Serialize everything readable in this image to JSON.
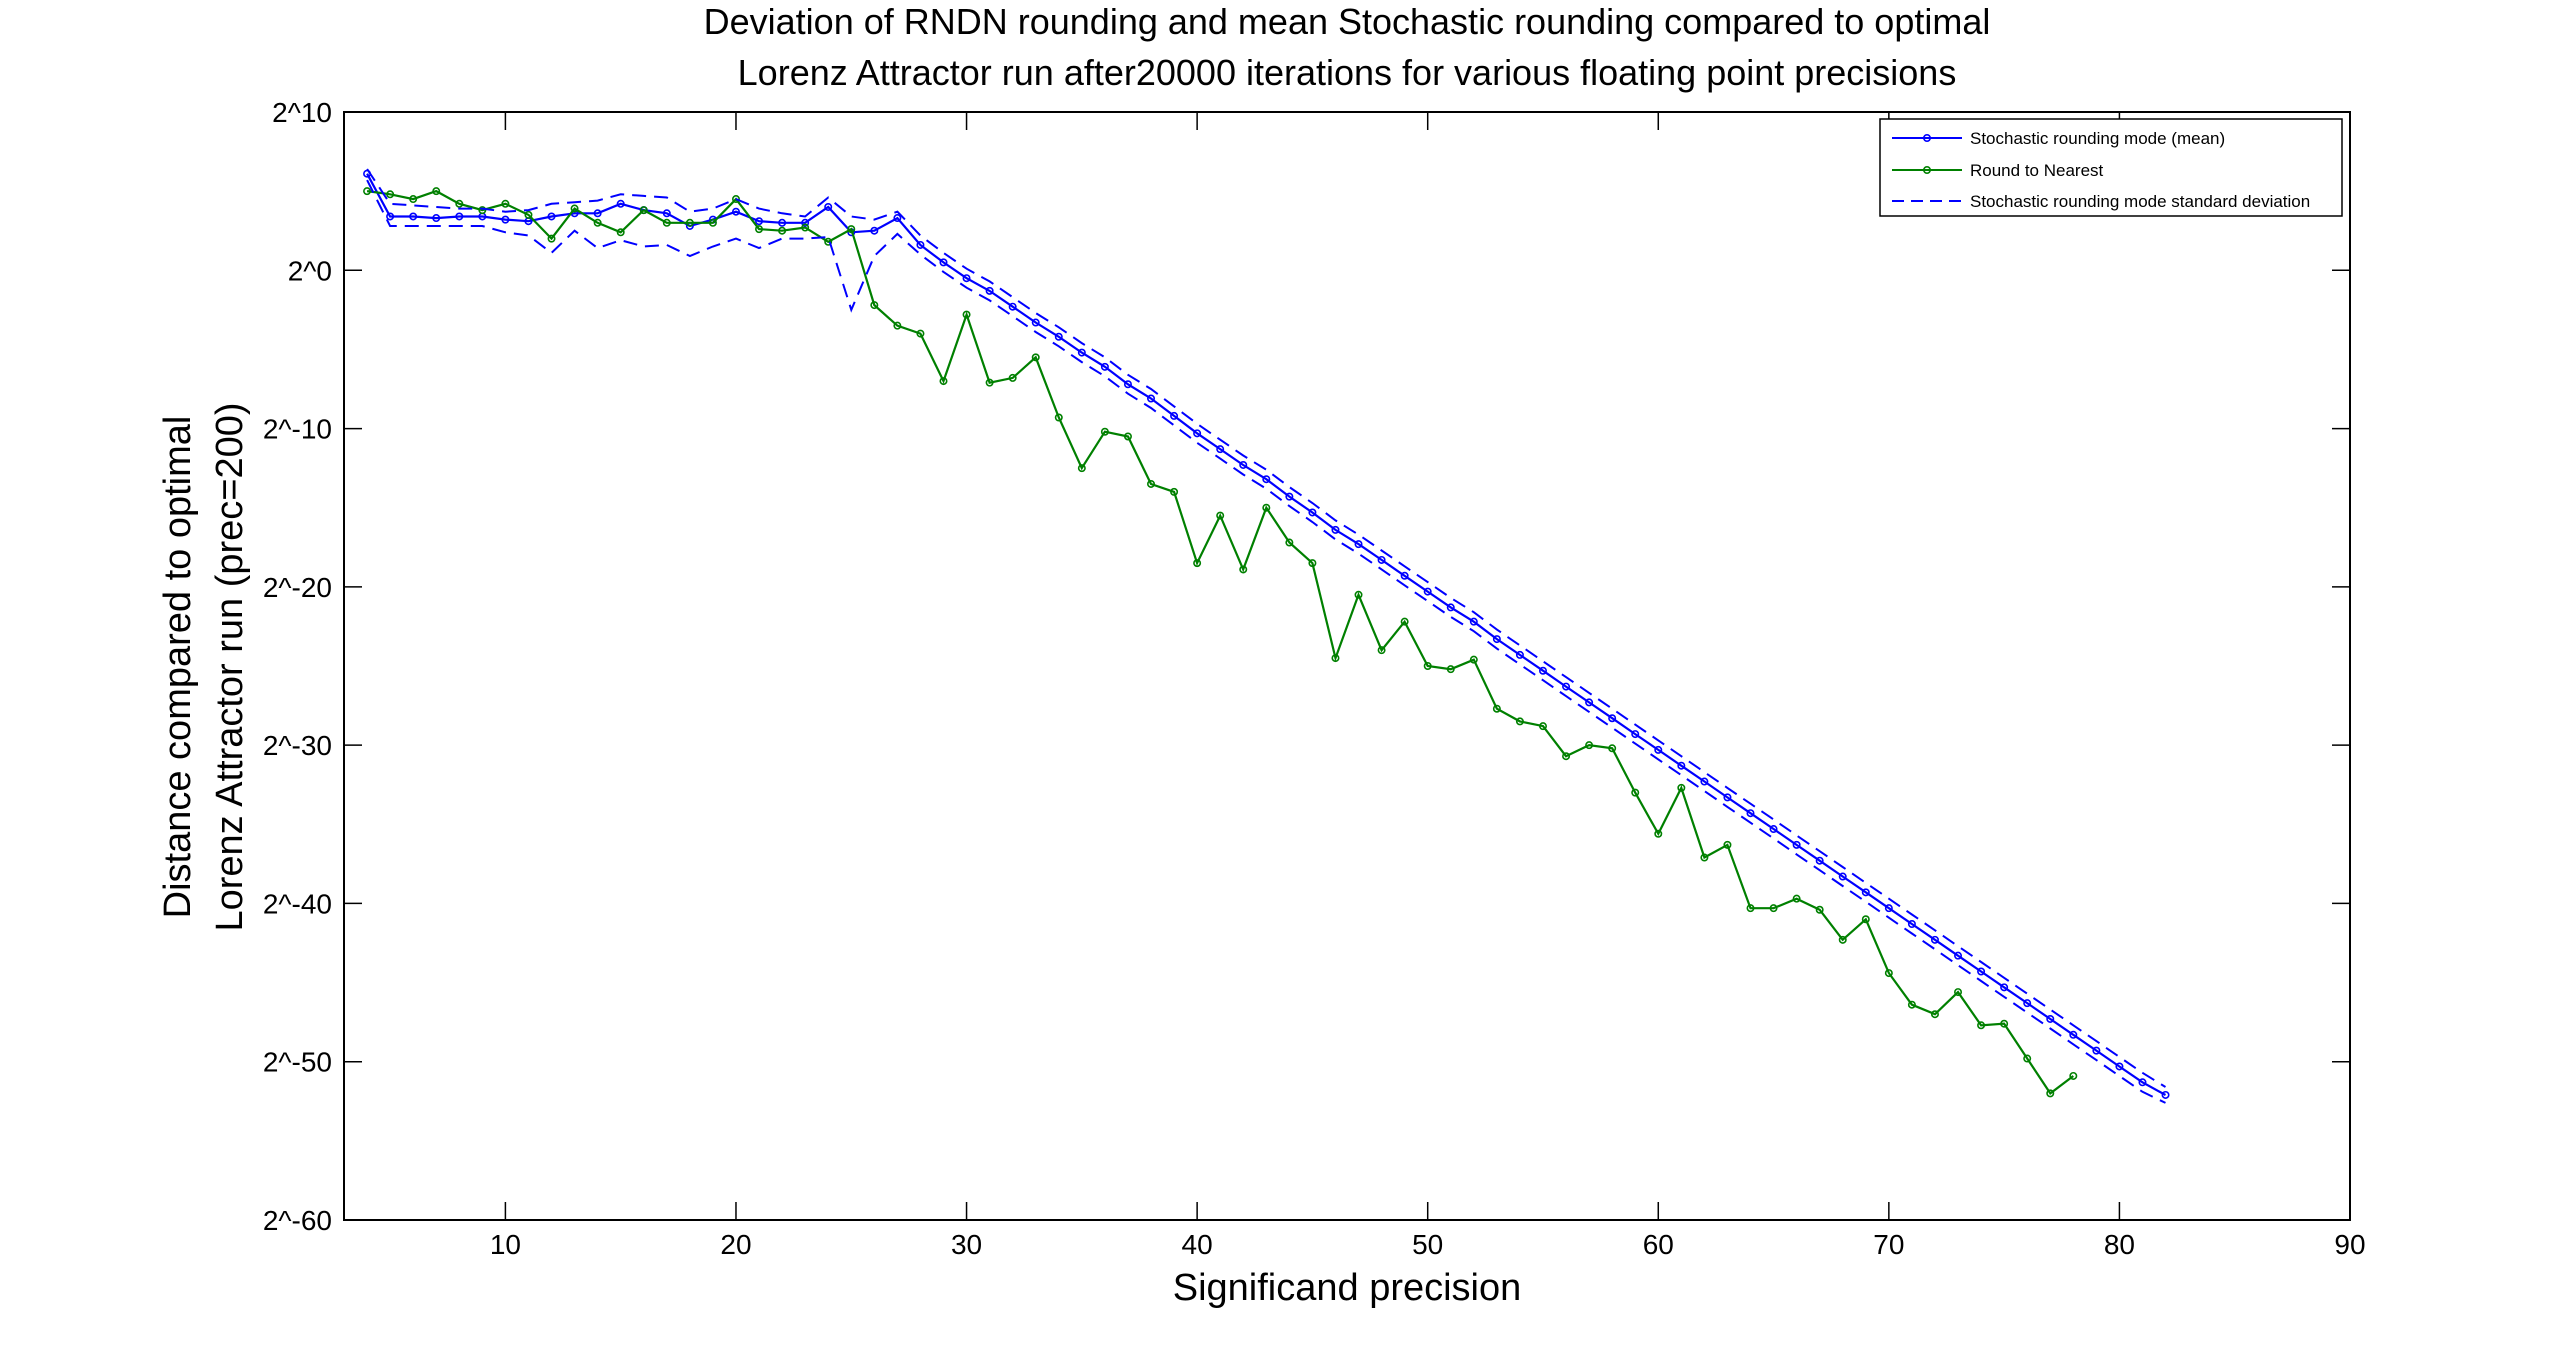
{
  "chart_data": {
    "type": "line",
    "title": [
      "Deviation of RNDN rounding and mean Stochastic rounding compared to optimal",
      "Lorenz Attractor run after20000 iterations for various floating point precisions"
    ],
    "xlabel": "Significand precision",
    "ylabel": [
      "Distance compared to optimal",
      "Lorenz Attractor run (prec=200)"
    ],
    "xlim": [
      3,
      90
    ],
    "ylim": [
      -60,
      10
    ],
    "y_scale": "log2",
    "x_ticks": [
      10,
      20,
      30,
      40,
      50,
      60,
      70,
      80,
      90
    ],
    "y_ticks": [
      10,
      0,
      -10,
      -20,
      -30,
      -40,
      -50,
      -60
    ],
    "y_tick_labels": [
      "2^10",
      "2^0",
      "2^-10",
      "2^-20",
      "2^-30",
      "2^-40",
      "2^-50",
      "2^-60"
    ],
    "grid": false,
    "legend_position": "top-right",
    "series": [
      {
        "name": "Stochastic rounding mode (mean)",
        "color": "#0000ff",
        "style": "solid-dots",
        "x": [
          4,
          5,
          6,
          7,
          8,
          9,
          10,
          11,
          12,
          13,
          14,
          15,
          16,
          17,
          18,
          19,
          20,
          21,
          22,
          23,
          24,
          25,
          26,
          27,
          28,
          29,
          30,
          31,
          32,
          33,
          34,
          35,
          36,
          37,
          38,
          39,
          40,
          41,
          42,
          43,
          44,
          45,
          46,
          47,
          48,
          49,
          50,
          51,
          52,
          53,
          54,
          55,
          56,
          57,
          58,
          59,
          60,
          61,
          62,
          63,
          64,
          65,
          66,
          67,
          68,
          69,
          70,
          71,
          72,
          73,
          74,
          75,
          76,
          77,
          78,
          79,
          80,
          81,
          82
        ],
        "y": [
          6.1,
          3.4,
          3.4,
          3.3,
          3.4,
          3.4,
          3.2,
          3.1,
          3.4,
          3.6,
          3.6,
          4.2,
          3.8,
          3.6,
          2.8,
          3.2,
          3.7,
          3.1,
          3.0,
          3.0,
          4.0,
          2.4,
          2.5,
          3.3,
          1.6,
          0.5,
          -0.5,
          -1.3,
          -2.3,
          -3.3,
          -4.2,
          -5.2,
          -6.1,
          -7.2,
          -8.1,
          -9.2,
          -10.3,
          -11.3,
          -12.3,
          -13.2,
          -14.3,
          -15.3,
          -16.4,
          -17.3,
          -18.3,
          -19.3,
          -20.3,
          -21.3,
          -22.2,
          -23.3,
          -24.3,
          -25.3,
          -26.3,
          -27.3,
          -28.3,
          -29.3,
          -30.3,
          -31.3,
          -32.3,
          -33.3,
          -34.3,
          -35.3,
          -36.3,
          -37.3,
          -38.3,
          -39.3,
          -40.3,
          -41.3,
          -42.3,
          -43.3,
          -44.3,
          -45.3,
          -46.3,
          -47.3,
          -48.3,
          -49.3,
          -50.3,
          -51.3,
          -52.1
        ]
      },
      {
        "name": "Round to Nearest",
        "color": "#008000",
        "style": "solid-dots",
        "x": [
          4,
          5,
          6,
          7,
          8,
          9,
          10,
          11,
          12,
          13,
          14,
          15,
          16,
          17,
          18,
          19,
          20,
          21,
          22,
          23,
          24,
          25,
          26,
          27,
          28,
          29,
          30,
          31,
          32,
          33,
          34,
          35,
          36,
          37,
          38,
          39,
          40,
          41,
          42,
          43,
          44,
          45,
          46,
          47,
          48,
          49,
          50,
          51,
          52,
          53,
          54,
          55,
          56,
          57,
          58,
          59,
          60,
          61,
          62,
          63,
          64,
          65,
          66,
          67,
          68,
          69,
          70,
          71,
          72,
          73,
          74,
          75,
          76,
          77,
          78
        ],
        "y": [
          5.0,
          4.8,
          4.5,
          5.0,
          4.2,
          3.8,
          4.2,
          3.5,
          2.0,
          3.9,
          3.0,
          2.4,
          3.8,
          3.0,
          3.0,
          3.0,
          4.5,
          2.6,
          2.5,
          2.7,
          1.8,
          2.6,
          -2.2,
          -3.5,
          -4.0,
          -7.0,
          -2.8,
          -7.1,
          -6.8,
          -5.5,
          -9.3,
          -12.5,
          -10.2,
          -10.5,
          -13.5,
          -14.0,
          -18.5,
          -15.5,
          -18.9,
          -15.0,
          -17.2,
          -18.5,
          -24.5,
          -20.5,
          -24.0,
          -22.2,
          -25.0,
          -25.2,
          -24.6,
          -27.7,
          -28.5,
          -28.8,
          -30.7,
          -30.0,
          -30.2,
          -33.0,
          -35.6,
          -32.7,
          -37.1,
          -36.3,
          -40.3,
          -40.3,
          -39.7,
          -40.4,
          -42.3,
          -41.0,
          -44.4,
          -46.4,
          -47.0,
          -45.6,
          -47.7,
          -47.6,
          -49.8,
          -52.0,
          -50.9
        ]
      },
      {
        "name": "Stochastic rounding mode standard deviation",
        "color": "#0000ff",
        "style": "dashed",
        "x": [
          4,
          5,
          6,
          7,
          8,
          9,
          10,
          11,
          12,
          13,
          14,
          15,
          16,
          17,
          18,
          19,
          20,
          21,
          22,
          23,
          24,
          25,
          26,
          27,
          28,
          29,
          30,
          31,
          32,
          33,
          34,
          35,
          36,
          37,
          38,
          39,
          40,
          41,
          42,
          43,
          44,
          45,
          46,
          47,
          48,
          49,
          50,
          51,
          52,
          53,
          54,
          55,
          56,
          57,
          58,
          59,
          60,
          61,
          62,
          63,
          64,
          65,
          66,
          67,
          68,
          69,
          70,
          71,
          72,
          73,
          74,
          75,
          76,
          77,
          78,
          79,
          80,
          81,
          82
        ],
        "y": [
          6.4,
          4.2,
          4.1,
          4.0,
          3.9,
          3.9,
          3.7,
          3.8,
          4.2,
          4.3,
          4.4,
          4.8,
          4.7,
          4.6,
          3.7,
          3.9,
          4.5,
          3.9,
          3.6,
          3.4,
          4.6,
          3.4,
          3.2,
          3.7,
          2.2,
          1.1,
          0.1,
          -0.7,
          -1.7,
          -2.7,
          -3.6,
          -4.6,
          -5.5,
          -6.6,
          -7.5,
          -8.6,
          -9.7,
          -10.7,
          -11.7,
          -12.6,
          -13.7,
          -14.7,
          -15.8,
          -16.7,
          -17.7,
          -18.7,
          -19.7,
          -20.7,
          -21.6,
          -22.7,
          -23.7,
          -24.7,
          -25.7,
          -26.7,
          -27.7,
          -28.7,
          -29.7,
          -30.7,
          -31.7,
          -32.7,
          -33.7,
          -34.7,
          -35.7,
          -36.7,
          -37.7,
          -38.7,
          -39.7,
          -40.7,
          -41.7,
          -42.7,
          -43.7,
          -44.7,
          -45.7,
          -46.7,
          -47.7,
          -48.7,
          -49.7,
          -50.7,
          -51.6
        ],
        "y_lower": [
          5.7,
          2.8,
          2.8,
          2.8,
          2.8,
          2.8,
          2.4,
          2.2,
          1.1,
          2.5,
          1.4,
          1.9,
          1.5,
          1.6,
          0.9,
          1.5,
          2.0,
          1.4,
          2.0,
          2.0,
          2.1,
          -2.5,
          0.9,
          2.3,
          1.0,
          -0.1,
          -1.1,
          -1.9,
          -2.9,
          -3.9,
          -4.8,
          -5.8,
          -6.7,
          -7.8,
          -8.7,
          -9.8,
          -10.9,
          -11.9,
          -12.9,
          -13.8,
          -14.9,
          -15.9,
          -17.0,
          -17.9,
          -18.9,
          -19.9,
          -20.9,
          -21.9,
          -22.8,
          -23.9,
          -24.9,
          -25.9,
          -26.9,
          -27.9,
          -28.9,
          -29.9,
          -30.9,
          -31.9,
          -32.9,
          -33.9,
          -34.9,
          -35.9,
          -36.9,
          -37.9,
          -38.9,
          -39.9,
          -40.9,
          -41.9,
          -42.9,
          -43.9,
          -44.9,
          -45.9,
          -46.9,
          -47.9,
          -48.9,
          -49.9,
          -50.9,
          -51.9,
          -52.6
        ]
      }
    ]
  }
}
